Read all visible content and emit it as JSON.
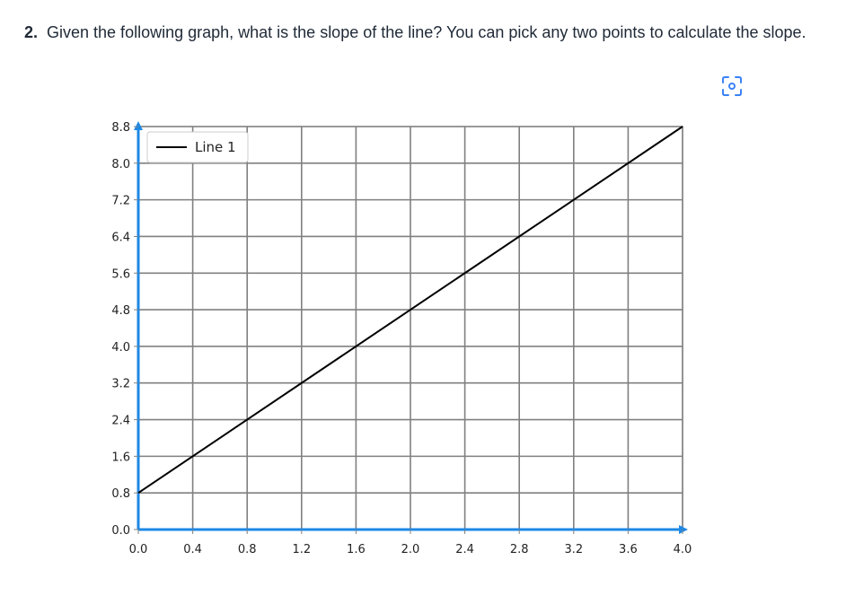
{
  "question": {
    "number": "2.",
    "text": "Given the following graph, what is the slope of the line? You can pick any two points to calculate the slope."
  },
  "toolbar": {
    "scan_icon": "scan-focus-icon"
  },
  "colors": {
    "axis": "#1e88e5",
    "grid": "#808080",
    "line": "#000000",
    "scan_icon": "#3b82f6"
  },
  "chart_data": {
    "type": "line",
    "title": "",
    "xlabel": "",
    "ylabel": "",
    "xlim": [
      0,
      4.0
    ],
    "ylim": [
      0,
      8.8
    ],
    "x_ticks": [
      "0.0",
      "0.4",
      "0.8",
      "1.2",
      "1.6",
      "2.0",
      "2.4",
      "2.8",
      "3.2",
      "3.6",
      "4.0"
    ],
    "y_ticks": [
      "0.0",
      "0.8",
      "1.6",
      "2.4",
      "3.2",
      "4.0",
      "4.8",
      "5.6",
      "6.4",
      "7.2",
      "8.0",
      "8.8"
    ],
    "grid": true,
    "legend_position": "top-left",
    "series": [
      {
        "name": "Line 1",
        "x": [
          0,
          4.0
        ],
        "y": [
          0.8,
          8.8
        ]
      }
    ]
  }
}
